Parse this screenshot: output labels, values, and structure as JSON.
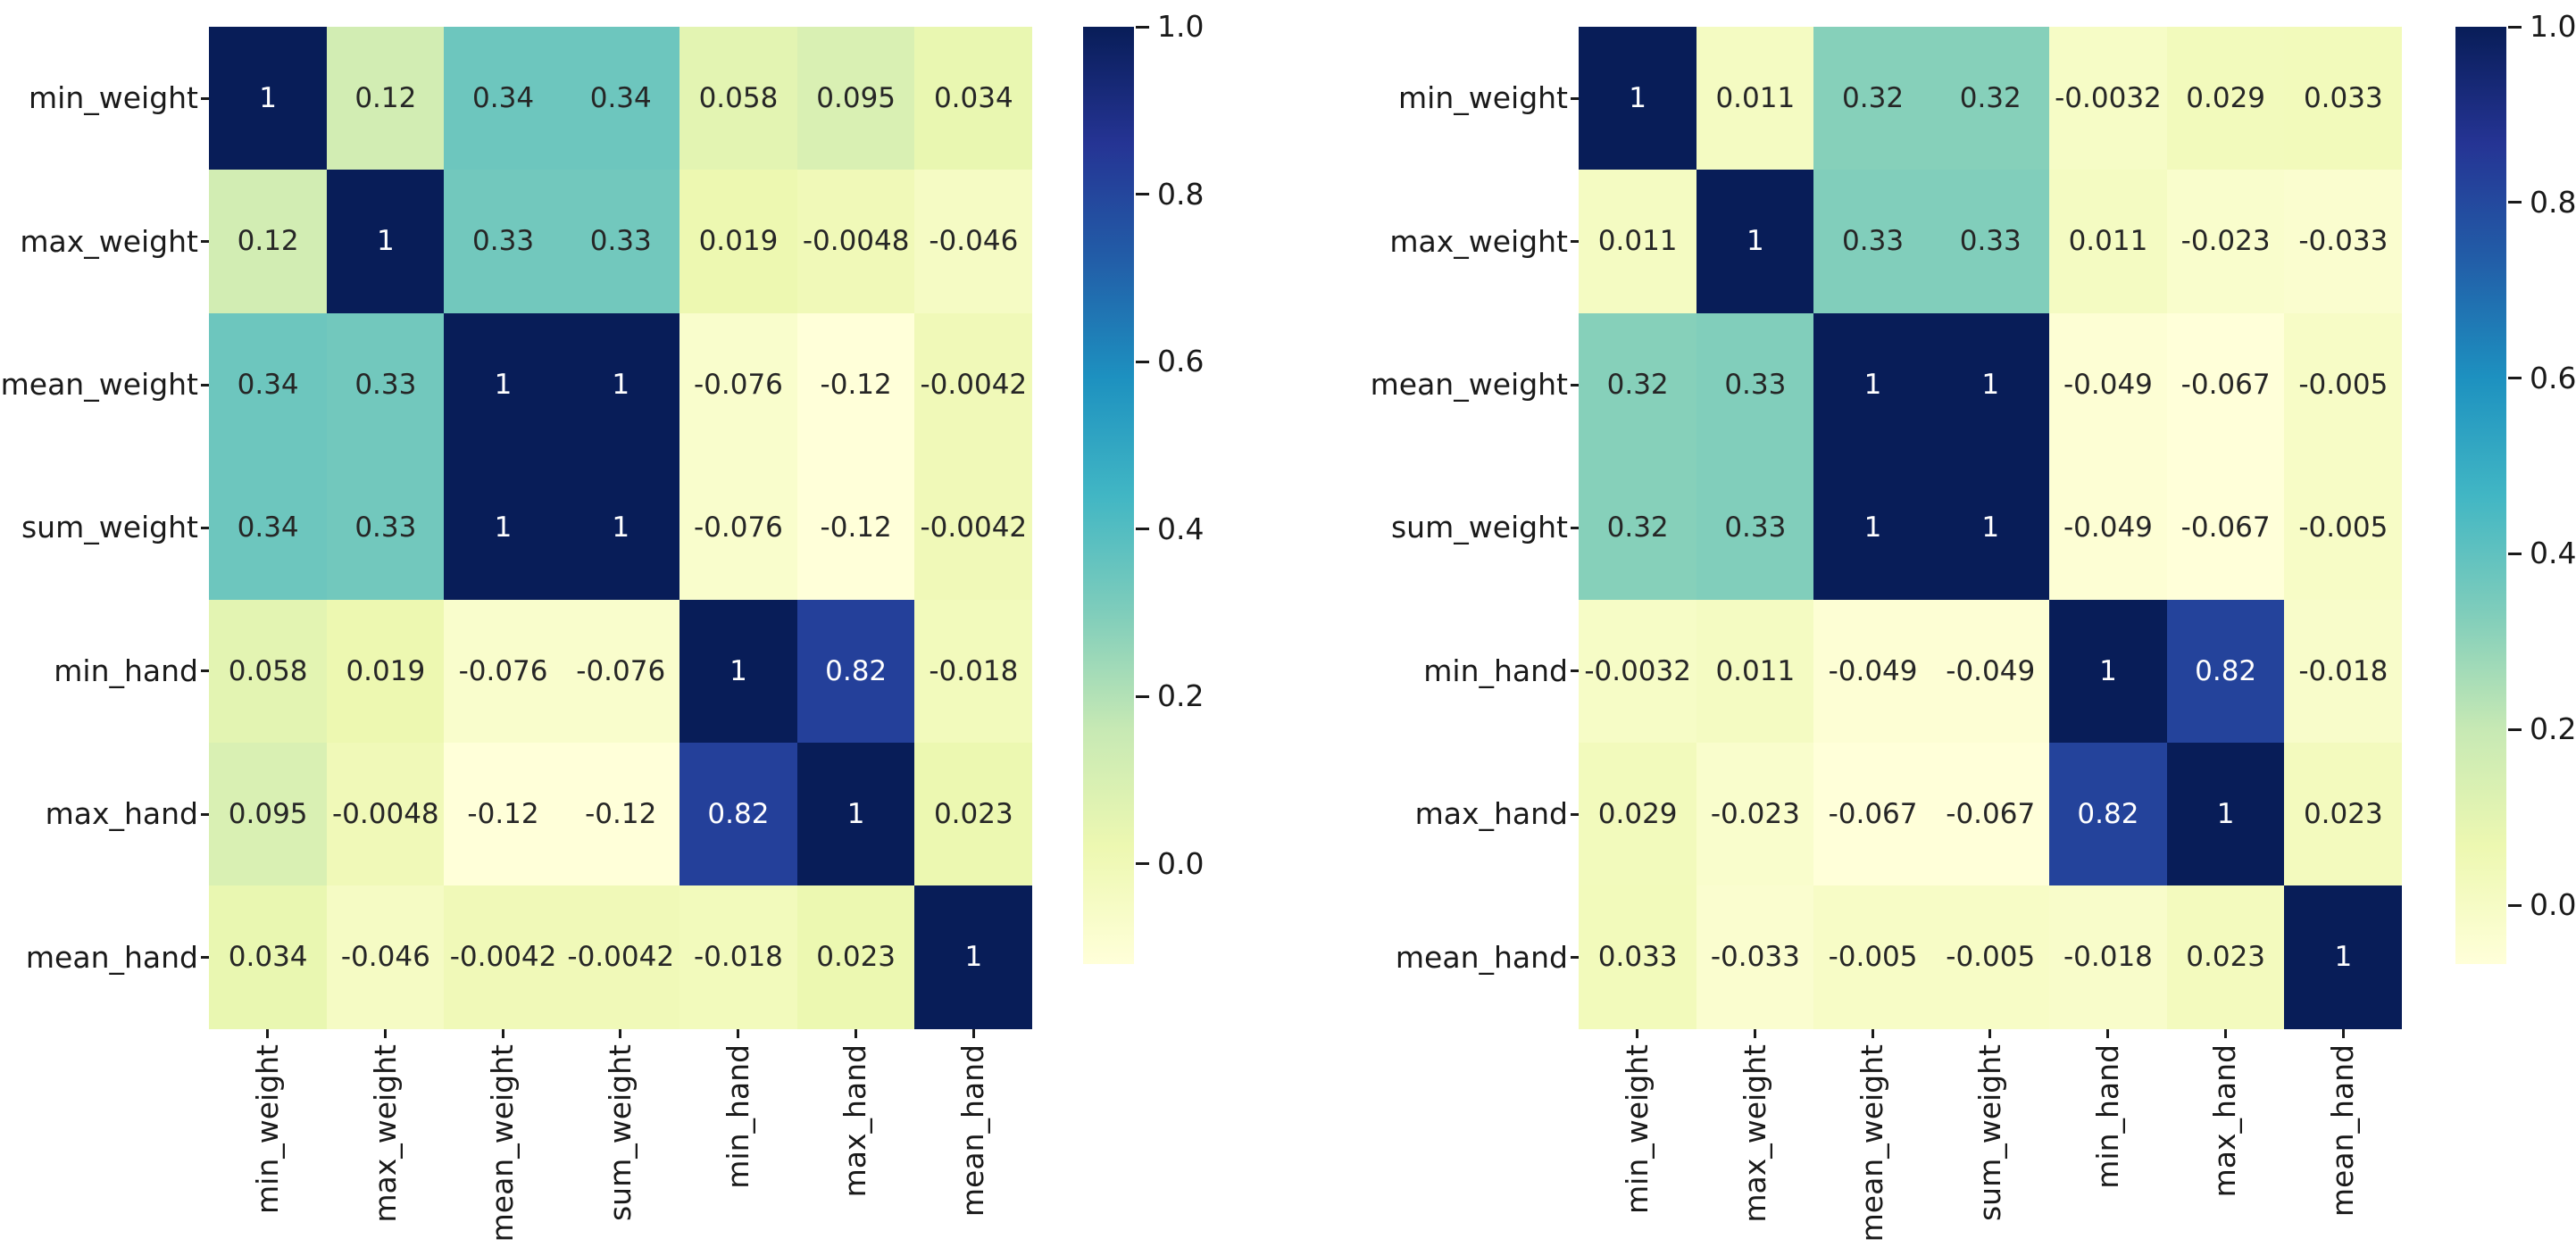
{
  "page": {
    "background": "#ffffff"
  },
  "chart_data": [
    {
      "type": "heatmap",
      "title": "",
      "position": "left",
      "colormap": "YlGnBu",
      "labels": [
        "min_weight",
        "max_weight",
        "mean_weight",
        "sum_weight",
        "min_hand",
        "max_hand",
        "mean_hand"
      ],
      "matrix": [
        [
          "1",
          "0.12",
          "0.34",
          "0.34",
          "0.058",
          "0.095",
          "0.034"
        ],
        [
          "0.12",
          "1",
          "0.33",
          "0.33",
          "0.019",
          "-0.0048",
          "-0.046"
        ],
        [
          "0.34",
          "0.33",
          "1",
          "1",
          "-0.076",
          "-0.12",
          "-0.0042"
        ],
        [
          "0.34",
          "0.33",
          "1",
          "1",
          "-0.076",
          "-0.12",
          "-0.0042"
        ],
        [
          "0.058",
          "0.019",
          "-0.076",
          "-0.076",
          "1",
          "0.82",
          "-0.018"
        ],
        [
          "0.095",
          "-0.0048",
          "-0.12",
          "-0.12",
          "0.82",
          "1",
          "0.023"
        ],
        [
          "0.034",
          "-0.046",
          "-0.0042",
          "-0.0042",
          "-0.018",
          "0.023",
          "1"
        ]
      ],
      "vmin": -0.12,
      "vmax": 1.0,
      "colorbar_ticks": [
        "1.0",
        "0.8",
        "0.6",
        "0.4",
        "0.2",
        "0.0"
      ],
      "legend_position": "right"
    },
    {
      "type": "heatmap",
      "title": "",
      "position": "right",
      "colormap": "YlGnBu",
      "labels": [
        "min_weight",
        "max_weight",
        "mean_weight",
        "sum_weight",
        "min_hand",
        "max_hand",
        "mean_hand"
      ],
      "matrix": [
        [
          "1",
          "0.011",
          "0.32",
          "0.32",
          "-0.0032",
          "0.029",
          "0.033"
        ],
        [
          "0.011",
          "1",
          "0.33",
          "0.33",
          "0.011",
          "-0.023",
          "-0.033"
        ],
        [
          "0.32",
          "0.33",
          "1",
          "1",
          "-0.049",
          "-0.067",
          "-0.005"
        ],
        [
          "0.32",
          "0.33",
          "1",
          "1",
          "-0.049",
          "-0.067",
          "-0.005"
        ],
        [
          "-0.0032",
          "0.011",
          "-0.049",
          "-0.049",
          "1",
          "0.82",
          "-0.018"
        ],
        [
          "0.029",
          "-0.023",
          "-0.067",
          "-0.067",
          "0.82",
          "1",
          "0.023"
        ],
        [
          "0.033",
          "-0.033",
          "-0.005",
          "-0.005",
          "-0.018",
          "0.023",
          "1"
        ]
      ],
      "vmin": -0.067,
      "vmax": 1.0,
      "colorbar_ticks": [
        "1.0",
        "0.8",
        "0.6",
        "0.4",
        "0.2",
        "0.0"
      ],
      "legend_position": "right"
    }
  ],
  "colors": {
    "colormap_stops": [
      "#ffffd9",
      "#edf8b1",
      "#c7e9b4",
      "#7fcdbb",
      "#41b6c4",
      "#1d91c0",
      "#225ea8",
      "#253494",
      "#081d58"
    ],
    "annotation_dark": "#262626",
    "annotation_light": "#ffffff",
    "tick_color": "#1a1a1a"
  }
}
